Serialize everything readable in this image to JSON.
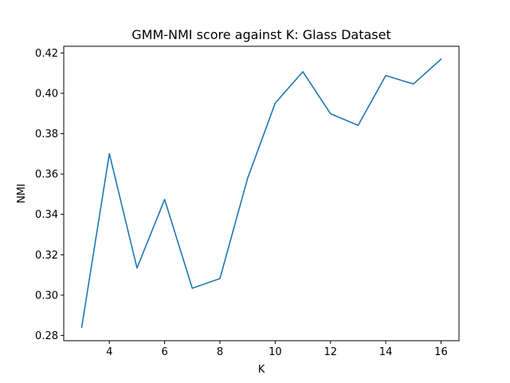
{
  "chart_data": {
    "type": "line",
    "title": "GMM-NMI score against K: Glass Dataset",
    "xlabel": "K",
    "ylabel": "NMI",
    "xlim": [
      2.35,
      16.65
    ],
    "ylim": [
      0.2774,
      0.4233
    ],
    "xticks": [
      4,
      6,
      8,
      10,
      12,
      14,
      16
    ],
    "xtick_labels": [
      "4",
      "6",
      "8",
      "10",
      "12",
      "14",
      "16"
    ],
    "yticks": [
      0.28,
      0.3,
      0.32,
      0.34,
      0.36,
      0.38,
      0.4,
      0.42
    ],
    "ytick_labels": [
      "0.28",
      "0.30",
      "0.32",
      "0.34",
      "0.36",
      "0.38",
      "0.40",
      "0.42"
    ],
    "grid": false,
    "series": [
      {
        "name": "NMI",
        "color": "#1f77b4",
        "x": [
          3,
          4,
          5,
          6,
          7,
          8,
          9,
          10,
          11,
          12,
          13,
          14,
          15,
          16
        ],
        "y": [
          0.2841,
          0.3701,
          0.3134,
          0.3474,
          0.3034,
          0.3082,
          0.3578,
          0.3951,
          0.4107,
          0.3899,
          0.3841,
          0.4088,
          0.4046,
          0.4169
        ]
      }
    ]
  }
}
